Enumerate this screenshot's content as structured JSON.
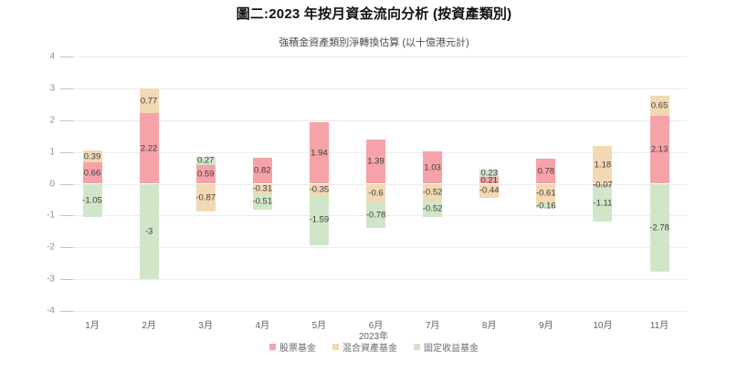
{
  "chart_data": {
    "type": "bar",
    "stacked": true,
    "title": "圖二:2023 年按月資金流向分析 (按資產類別)",
    "subtitle": "強積金資產類別淨轉換估算 (以十億港元計)",
    "xlabel": "2023年",
    "categories": [
      "1月",
      "2月",
      "3月",
      "4月",
      "5月",
      "6月",
      "7月",
      "8月",
      "9月",
      "10月",
      "11月"
    ],
    "series": [
      {
        "name": "股票基金",
        "color": "#f5a3a9",
        "values": [
          0.66,
          2.22,
          0.59,
          0.82,
          1.94,
          1.39,
          1.03,
          0.21,
          0.78,
          -0.07,
          2.13
        ]
      },
      {
        "name": "混合資產基金",
        "color": "#f2d8b3",
        "values": [
          0.39,
          0.77,
          -0.87,
          -0.31,
          -0.35,
          -0.6,
          -0.52,
          -0.44,
          -0.61,
          1.18,
          0.65
        ]
      },
      {
        "name": "固定收益基金",
        "color": "#d1e6c9",
        "values": [
          -1.05,
          -3,
          0.27,
          -0.51,
          -1.59,
          -0.78,
          -0.52,
          0.23,
          -0.16,
          -1.11,
          -2.78
        ]
      }
    ],
    "ylim": [
      -4,
      4
    ],
    "y_ticks": [
      4,
      3,
      2,
      1,
      0,
      -1,
      -2,
      -3,
      -4
    ],
    "grid": true,
    "legend_position": "bottom"
  }
}
